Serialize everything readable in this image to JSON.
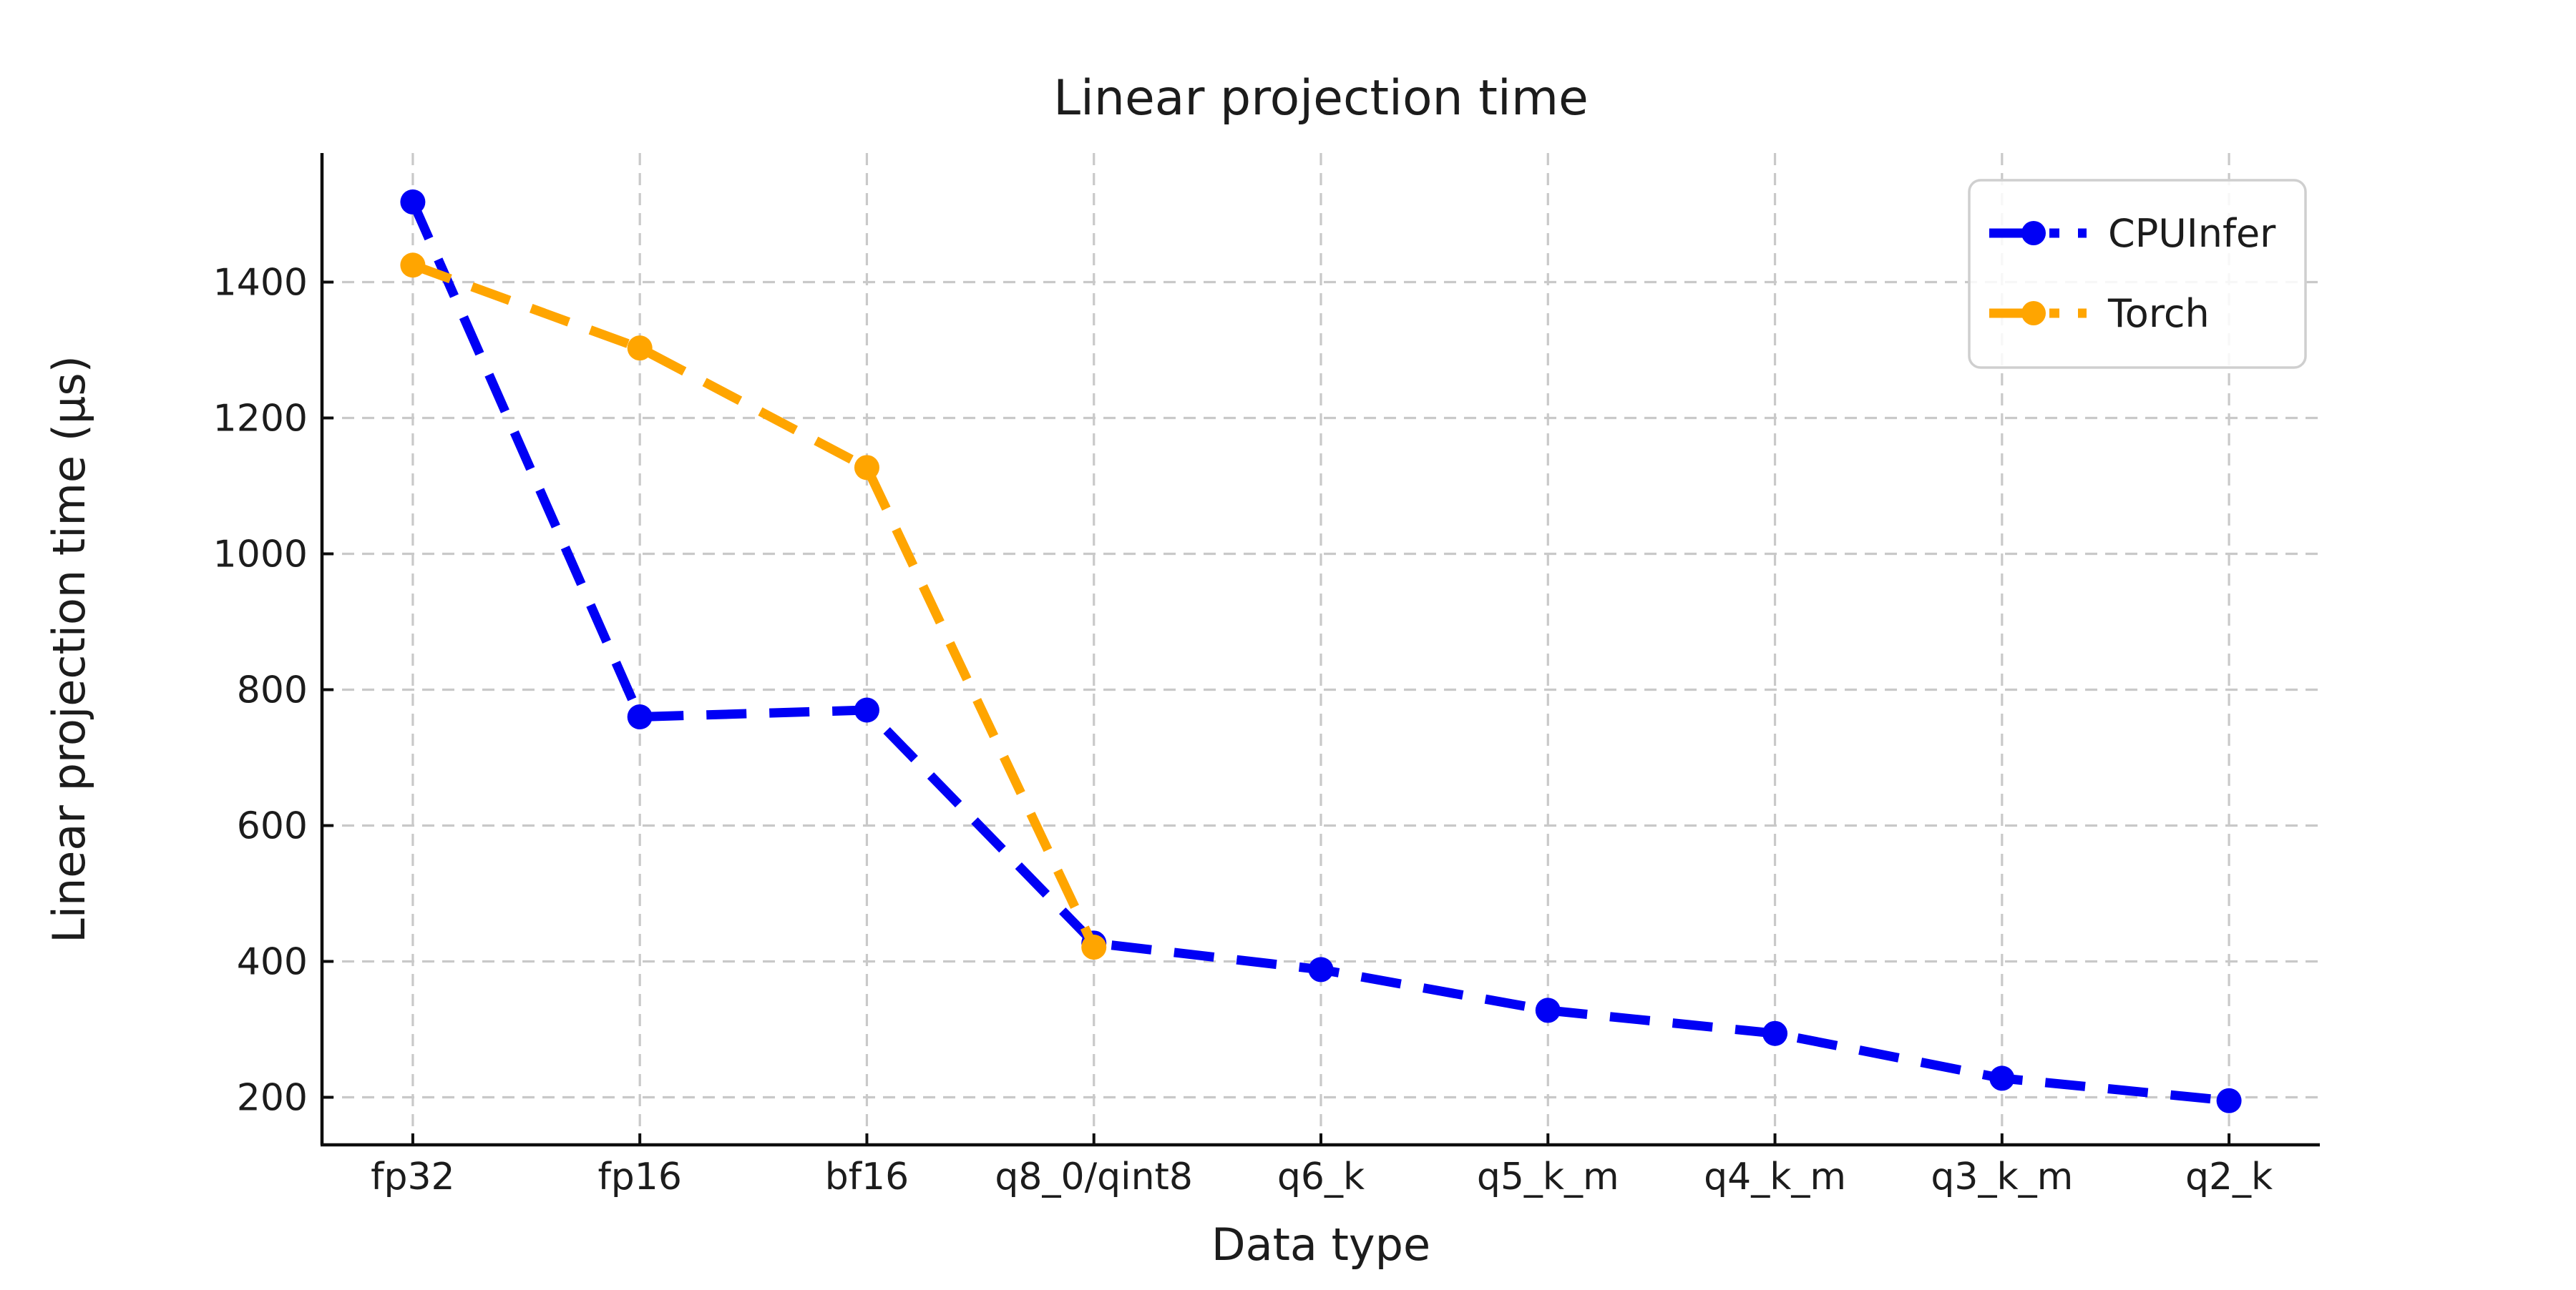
{
  "chart_data": {
    "type": "line",
    "title": "Linear projection time",
    "xlabel": "Data type",
    "ylabel": "Linear projection time (µs)",
    "categories": [
      "fp32",
      "fp16",
      "bf16",
      "q8_0/qint8",
      "q6_k",
      "q5_k_m",
      "q4_k_m",
      "q3_k_m",
      "q2_k"
    ],
    "series": [
      {
        "name": "CPUInfer",
        "color": "#0000f5",
        "line_style": "dashed",
        "marker": "circle",
        "values": [
          1518,
          760,
          770,
          427,
          388,
          328,
          294,
          228,
          195
        ]
      },
      {
        "name": "Torch",
        "color": "#ffa500",
        "line_style": "dashed",
        "marker": "circle",
        "values": [
          1425,
          1303,
          1127,
          421
        ]
      }
    ],
    "ylim": [
      130,
      1590
    ],
    "yticks": [
      200,
      400,
      600,
      800,
      1000,
      1200,
      1400
    ],
    "grid": true,
    "grid_style": "dashed",
    "legend_position": "upper right",
    "legend_entries": [
      "CPUInfer",
      "Torch"
    ]
  },
  "style_colors": {
    "background": "#ffffff",
    "grid_color": "#c9c9c9",
    "spine_color": "#0d0d0d",
    "text_color": "#1c1c1c",
    "legend_border": "#cfcfcf"
  }
}
